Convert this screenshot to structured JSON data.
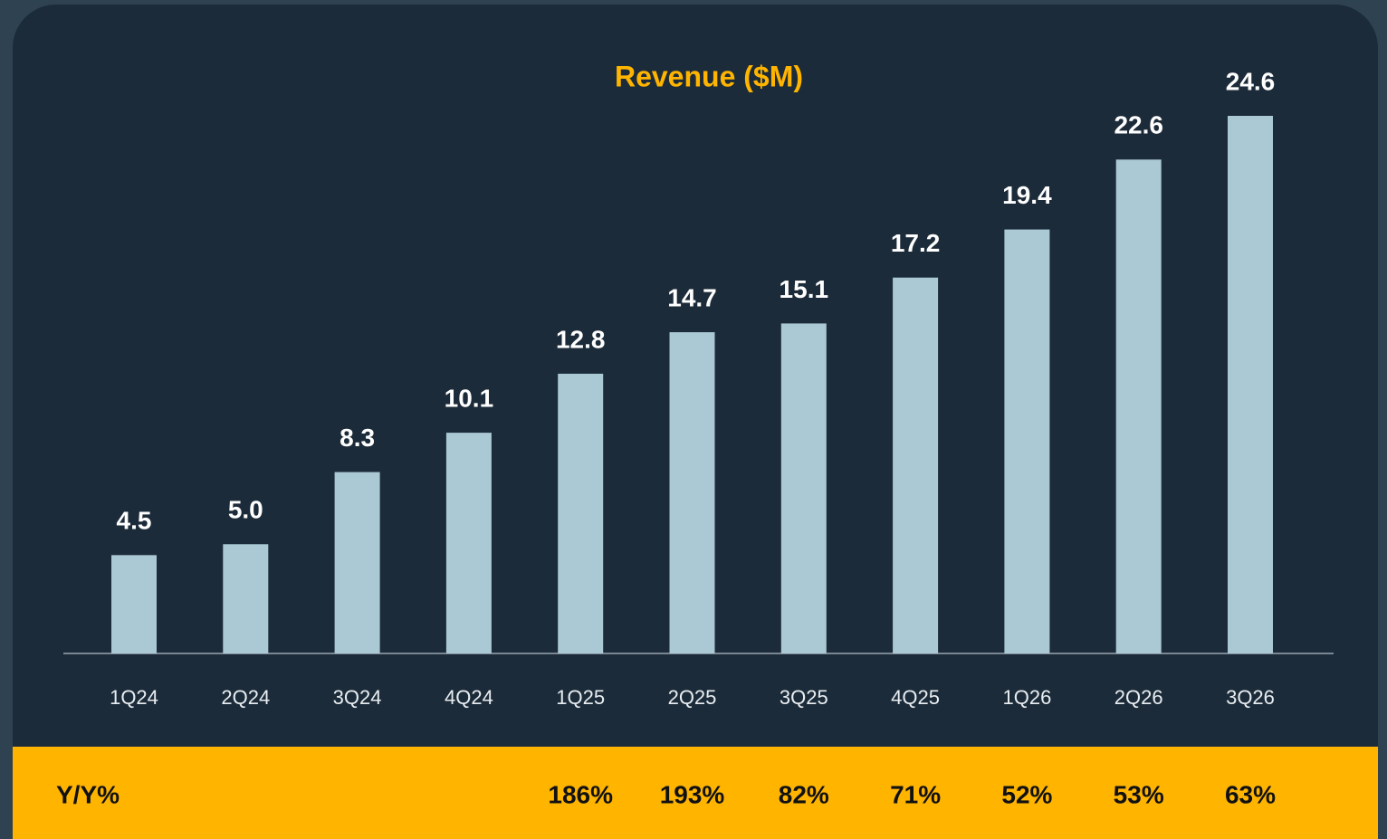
{
  "chart_data": {
    "type": "bar",
    "title": "Revenue ($M)",
    "categories": [
      "1Q24",
      "2Q24",
      "3Q24",
      "4Q24",
      "1Q25",
      "2Q25",
      "3Q25",
      "4Q25",
      "1Q26",
      "2Q26",
      "3Q26"
    ],
    "values": [
      4.5,
      5.0,
      8.3,
      10.1,
      12.8,
      14.7,
      15.1,
      17.2,
      19.4,
      22.6,
      24.6
    ],
    "value_labels": [
      "4.5",
      "5.0",
      "8.3",
      "10.1",
      "12.8",
      "14.7",
      "15.1",
      "17.2",
      "19.4",
      "22.6",
      "24.6"
    ],
    "color": "#abc8d5",
    "growth": {
      "label": "Y/Y%",
      "values": [
        null,
        null,
        null,
        null,
        186,
        193,
        82,
        71,
        52,
        53,
        63
      ],
      "value_labels": [
        null,
        null,
        null,
        null,
        "186%",
        "193%",
        "82%",
        "71%",
        "52%",
        "53%",
        "63%"
      ]
    }
  }
}
